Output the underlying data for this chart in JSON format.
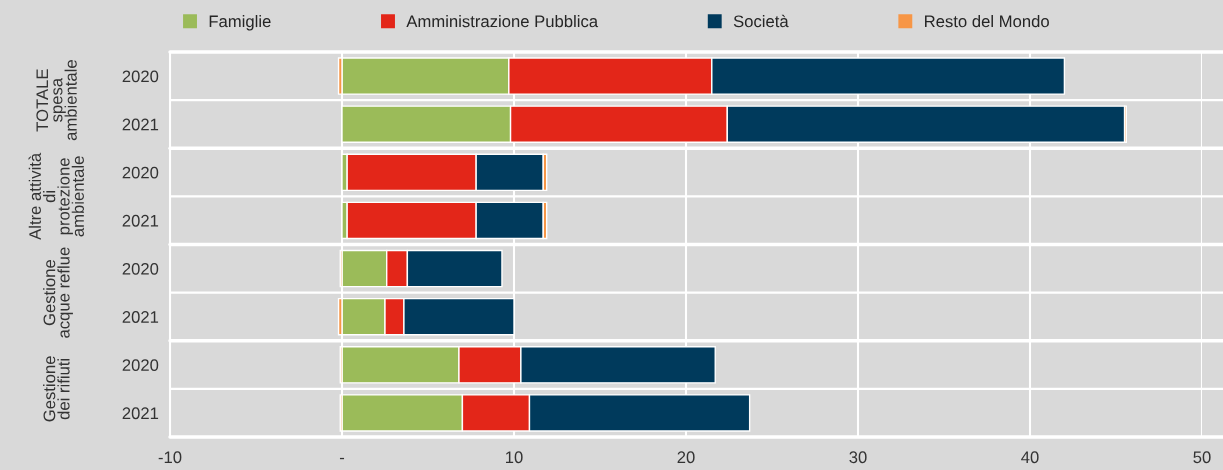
{
  "chart_data": {
    "type": "bar",
    "orientation": "horizontal",
    "stacked": true,
    "categories": [
      "2020",
      "2021",
      "2020",
      "2021",
      "2020",
      "2021",
      "2020",
      "2021"
    ],
    "series": [
      {
        "name": "Famiglie",
        "color": "#9bbb59",
        "values": [
          9.7,
          9.8,
          0.3,
          0.3,
          2.6,
          2.5,
          6.8,
          7.0
        ]
      },
      {
        "name": "Amministrazione Pubblica",
        "color": "#e32619",
        "values": [
          11.8,
          12.6,
          7.5,
          7.5,
          1.2,
          1.1,
          3.6,
          3.9
        ]
      },
      {
        "name": "Società",
        "color": "#003a5c",
        "values": [
          20.5,
          23.1,
          3.9,
          3.9,
          5.5,
          6.4,
          11.3,
          12.8
        ]
      },
      {
        "name": "Resto del Mondo",
        "color": "#f79646",
        "values": [
          -0.2,
          0.1,
          0.2,
          0.2,
          -0.1,
          -0.2,
          -0.1,
          -0.1
        ]
      }
    ],
    "annotations": [
      "TOTALE\nspesa\nambientale",
      "Altre attività\ndi\nprotezione\nambientale",
      "Gestione\nacque reflue",
      "Gestione\ndei rifiuti"
    ],
    "xlim": [
      -10,
      50
    ],
    "xticks": [
      -10,
      {
        "value": 0,
        "label": "-"
      },
      10,
      20,
      30,
      40,
      50
    ],
    "grid": "x",
    "legend": "top"
  }
}
